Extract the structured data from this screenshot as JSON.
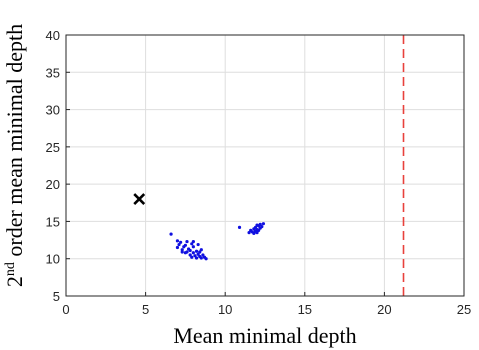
{
  "chart_data": {
    "type": "scatter",
    "title": "",
    "xlabel": "Mean minimal depth",
    "ylabel_prefix": "2",
    "ylabel_superscript": "nd",
    "ylabel_suffix": " order mean minimal depth",
    "xlim": [
      0,
      25
    ],
    "ylim": [
      5,
      40
    ],
    "grid": true,
    "x_ticks": [
      0,
      5,
      10,
      15,
      20,
      25
    ],
    "y_ticks": [
      5,
      10,
      15,
      20,
      25,
      30,
      35,
      40
    ],
    "colors": {
      "points": "#1010e0",
      "marker": "#000000",
      "threshold": "#e8413c"
    },
    "threshold_line": {
      "x": 21.2,
      "style": "dashed"
    },
    "highlight_marker": {
      "shape": "x",
      "x": 4.6,
      "y": 18.0
    },
    "points": [
      [
        6.6,
        13.3
      ],
      [
        7.0,
        12.4
      ],
      [
        7.1,
        11.9
      ],
      [
        7.2,
        12.2
      ],
      [
        7.0,
        11.5
      ],
      [
        7.3,
        11.2
      ],
      [
        7.4,
        11.6
      ],
      [
        7.3,
        10.9
      ],
      [
        7.5,
        11.8
      ],
      [
        7.6,
        12.3
      ],
      [
        7.5,
        10.8
      ],
      [
        7.7,
        11.3
      ],
      [
        7.8,
        10.5
      ],
      [
        7.8,
        11.1
      ],
      [
        7.9,
        12.0
      ],
      [
        7.9,
        10.2
      ],
      [
        8.0,
        11.6
      ],
      [
        8.0,
        10.8
      ],
      [
        8.1,
        10.4
      ],
      [
        8.2,
        11.0
      ],
      [
        8.2,
        10.1
      ],
      [
        8.3,
        11.9
      ],
      [
        8.3,
        10.6
      ],
      [
        8.4,
        10.3
      ],
      [
        8.5,
        11.2
      ],
      [
        8.5,
        10.1
      ],
      [
        8.6,
        10.5
      ],
      [
        8.7,
        10.2
      ],
      [
        8.8,
        10.0
      ],
      [
        8.0,
        12.3
      ],
      [
        7.6,
        10.9
      ],
      [
        8.4,
        10.9
      ],
      [
        10.9,
        14.2
      ],
      [
        11.5,
        13.5
      ],
      [
        11.6,
        13.8
      ],
      [
        11.7,
        13.6
      ],
      [
        11.8,
        14.0
      ],
      [
        11.8,
        13.4
      ],
      [
        11.9,
        13.7
      ],
      [
        11.9,
        14.2
      ],
      [
        12.0,
        13.9
      ],
      [
        12.0,
        13.5
      ],
      [
        12.1,
        14.4
      ],
      [
        12.1,
        13.8
      ],
      [
        12.2,
        14.1
      ],
      [
        12.2,
        14.6
      ],
      [
        12.3,
        14.3
      ],
      [
        12.4,
        14.7
      ],
      [
        12.0,
        14.5
      ]
    ]
  }
}
